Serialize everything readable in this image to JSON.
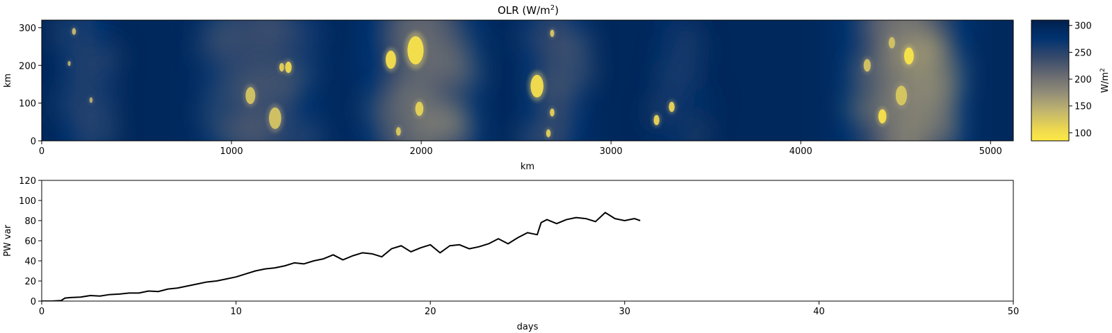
{
  "chart_data": [
    {
      "type": "heatmap",
      "title": "OLR (W/m²)",
      "title_base": "OLR (W/m",
      "title_sup": "2",
      "title_close": ")",
      "xlabel": "km",
      "ylabel": "km",
      "xlim": [
        0,
        5120
      ],
      "ylim": [
        0,
        320
      ],
      "xticks": [
        0,
        1000,
        2000,
        3000,
        4000,
        5000
      ],
      "yticks": [
        0,
        100,
        200,
        300
      ],
      "colormap": "cividis",
      "colorbar": {
        "label": "W/m²",
        "label_base": "W/m",
        "label_sup": "2",
        "range": [
          85,
          310
        ],
        "ticks": [
          100,
          150,
          200,
          250,
          300
        ]
      },
      "convective_bands_km": [
        {
          "center": 230,
          "width": 300,
          "min_olr": 215
        },
        {
          "center": 1150,
          "width": 650,
          "min_olr": 200
        },
        {
          "center": 2000,
          "width": 600,
          "min_olr": 170
        },
        {
          "center": 2700,
          "width": 380,
          "min_olr": 205
        },
        {
          "center": 3330,
          "width": 300,
          "min_olr": 235
        },
        {
          "center": 4550,
          "width": 620,
          "min_olr": 150
        }
      ],
      "deep_convective_cells": [
        {
          "x": 170,
          "y": 290,
          "r": 12,
          "olr": 140
        },
        {
          "x": 145,
          "y": 205,
          "r": 9,
          "olr": 150
        },
        {
          "x": 260,
          "y": 108,
          "r": 10,
          "olr": 150
        },
        {
          "x": 1100,
          "y": 120,
          "r": 30,
          "olr": 130
        },
        {
          "x": 1230,
          "y": 60,
          "r": 38,
          "olr": 130
        },
        {
          "x": 1265,
          "y": 195,
          "r": 15,
          "olr": 115
        },
        {
          "x": 1300,
          "y": 195,
          "r": 20,
          "olr": 110
        },
        {
          "x": 1840,
          "y": 215,
          "r": 32,
          "olr": 105
        },
        {
          "x": 1970,
          "y": 240,
          "r": 50,
          "olr": 100
        },
        {
          "x": 1990,
          "y": 85,
          "r": 25,
          "olr": 115
        },
        {
          "x": 1880,
          "y": 25,
          "r": 15,
          "olr": 125
        },
        {
          "x": 2610,
          "y": 145,
          "r": 40,
          "olr": 105
        },
        {
          "x": 2690,
          "y": 75,
          "r": 14,
          "olr": 120
        },
        {
          "x": 2670,
          "y": 20,
          "r": 14,
          "olr": 120
        },
        {
          "x": 2690,
          "y": 285,
          "r": 13,
          "olr": 130
        },
        {
          "x": 3240,
          "y": 55,
          "r": 18,
          "olr": 115
        },
        {
          "x": 3320,
          "y": 90,
          "r": 18,
          "olr": 115
        },
        {
          "x": 4430,
          "y": 65,
          "r": 25,
          "olr": 100
        },
        {
          "x": 4570,
          "y": 225,
          "r": 30,
          "olr": 95
        },
        {
          "x": 4530,
          "y": 120,
          "r": 35,
          "olr": 125
        },
        {
          "x": 4350,
          "y": 200,
          "r": 22,
          "olr": 130
        },
        {
          "x": 4480,
          "y": 260,
          "r": 20,
          "olr": 130
        }
      ]
    },
    {
      "type": "line",
      "xlabel": "days",
      "ylabel": "PW var",
      "xlim": [
        0,
        50
      ],
      "ylim": [
        0,
        120
      ],
      "xticks": [
        0,
        10,
        20,
        30,
        40,
        50
      ],
      "yticks": [
        0,
        20,
        40,
        60,
        80,
        100,
        120
      ],
      "series": [
        {
          "color": "#000000",
          "x": [
            0,
            0.5,
            1.0,
            1.2,
            1.5,
            2.0,
            2.5,
            3.0,
            3.5,
            4.0,
            4.5,
            5.0,
            5.5,
            6.0,
            6.5,
            7.0,
            7.5,
            8.0,
            8.5,
            9.0,
            9.5,
            10.0,
            10.5,
            11.0,
            11.5,
            12.0,
            12.5,
            13.0,
            13.5,
            14.0,
            14.5,
            15.0,
            15.5,
            16.0,
            16.5,
            17.0,
            17.5,
            18.0,
            18.5,
            19.0,
            19.5,
            20.0,
            20.5,
            21.0,
            21.5,
            22.0,
            22.5,
            23.0,
            23.5,
            24.0,
            24.5,
            25.0,
            25.5,
            25.7,
            26.0,
            26.5,
            27.0,
            27.5,
            28.0,
            28.5,
            29.0,
            29.5,
            30.0,
            30.5,
            30.8
          ],
          "y": [
            0,
            0,
            0.5,
            3,
            3.5,
            4,
            5.5,
            5,
            6.5,
            7,
            8,
            8,
            10,
            9.5,
            12,
            13,
            15,
            17,
            19,
            20,
            22,
            24,
            27,
            30,
            32,
            33,
            35,
            38,
            37,
            40,
            42,
            46,
            41,
            45,
            48,
            47,
            44,
            52,
            55,
            49,
            53,
            56,
            48,
            55,
            56,
            52,
            54,
            57,
            62,
            57,
            63,
            68,
            66,
            78,
            81,
            77,
            81,
            83,
            82,
            79,
            88,
            82,
            80,
            82,
            80
          ]
        }
      ]
    }
  ]
}
